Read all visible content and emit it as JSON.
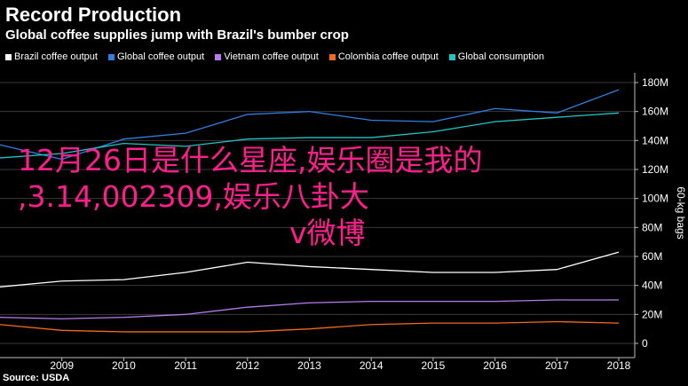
{
  "chart_data": {
    "type": "line",
    "title": "Record Production",
    "subtitle": "Global coffee supplies jump with Brazil's bumber crop",
    "ylabel": "60-kg bags",
    "source": "Source: USDA",
    "x": [
      2008,
      2009,
      2010,
      2011,
      2012,
      2013,
      2014,
      2015,
      2016,
      2017,
      2018
    ],
    "xlim": [
      2008,
      2018
    ],
    "x_ticks": [
      "2009",
      "2010",
      "2011",
      "2012",
      "2013",
      "2014",
      "2015",
      "2016",
      "2017",
      "2018"
    ],
    "ylim": [
      0,
      185
    ],
    "y_ticks": [
      "0",
      "20M",
      "40M",
      "60M",
      "80M",
      "100M",
      "120M",
      "140M",
      "160M",
      "180M"
    ],
    "legend_position": "top",
    "series": [
      {
        "name": "Brazil coffee output",
        "color": "#ffffff",
        "values": [
          39,
          43,
          44,
          49,
          56,
          53,
          51,
          49,
          49,
          51,
          63
        ]
      },
      {
        "name": "Global coffee output",
        "color": "#2f7fe0",
        "values": [
          137,
          127,
          141,
          145,
          158,
          160,
          154,
          153,
          162,
          159,
          175
        ]
      },
      {
        "name": "Vietnam coffee output",
        "color": "#b57cf0",
        "values": [
          18,
          17,
          18,
          20,
          25,
          28,
          29,
          29,
          29,
          30,
          30
        ]
      },
      {
        "name": "Colombia coffee output",
        "color": "#f26a1b",
        "values": [
          13,
          9,
          8,
          8,
          8,
          10,
          13,
          14,
          14,
          15,
          14
        ]
      },
      {
        "name": "Global consumption",
        "color": "#1fc5c5",
        "values": [
          128,
          131,
          138,
          136,
          141,
          142,
          142,
          146,
          153,
          156,
          159
        ]
      }
    ]
  },
  "overlay": {
    "line1": "12月26日是什么星座,娱乐圈是我的",
    "line2": ",3.14,002309,娱乐八卦大",
    "line3": "v微博"
  }
}
